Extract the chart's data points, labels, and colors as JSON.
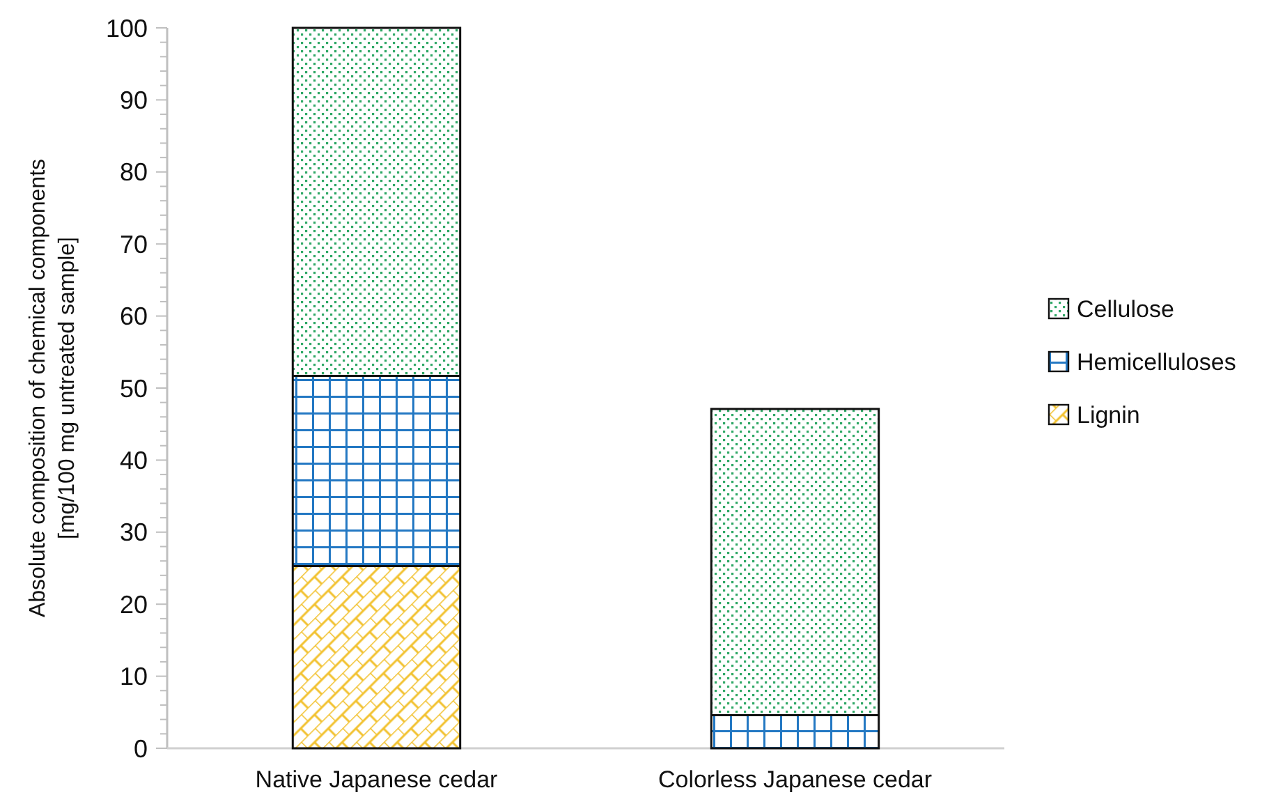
{
  "chart_data": {
    "type": "bar",
    "stacked": true,
    "ylabel": "Absolute composition of chemical components\n[mg/100 mg untreated sample]",
    "categories": [
      "Native Japanese cedar",
      "Colorless Japanese cedar"
    ],
    "series": [
      {
        "name": "Lignin",
        "color": "#f2c12e",
        "values": [
          25.3,
          0
        ]
      },
      {
        "name": "Hemicelluloses",
        "color": "#2378c3",
        "values": [
          26.4,
          4.6
        ]
      },
      {
        "name": "Cellulose",
        "color": "#2fa866",
        "values": [
          48.3,
          42.5
        ]
      }
    ],
    "ylim": [
      0,
      100
    ],
    "yticks": [
      0,
      {
        "value": 2,
        "label": null
      },
      {
        "value": 4,
        "label": null
      },
      {
        "value": 6,
        "label": null
      },
      {
        "value": 8,
        "label": null
      },
      10,
      {
        "value": 12,
        "label": null
      },
      {
        "value": 14,
        "label": null
      },
      {
        "value": 16,
        "label": null
      },
      {
        "value": 18,
        "label": null
      },
      20,
      {
        "value": 22,
        "label": null
      },
      {
        "value": 24,
        "label": null
      },
      {
        "value": 26,
        "label": null
      },
      {
        "value": 28,
        "label": null
      },
      30,
      {
        "value": 32,
        "label": null
      },
      {
        "value": 34,
        "label": null
      },
      {
        "value": 36,
        "label": null
      },
      {
        "value": 38,
        "label": null
      },
      40,
      {
        "value": 42,
        "label": null
      },
      {
        "value": 44,
        "label": null
      },
      {
        "value": 46,
        "label": null
      },
      {
        "value": 48,
        "label": null
      },
      50,
      {
        "value": 52,
        "label": null
      },
      {
        "value": 54,
        "label": null
      },
      {
        "value": 56,
        "label": null
      },
      {
        "value": 58,
        "label": null
      },
      60,
      {
        "value": 62,
        "label": null
      },
      {
        "value": 64,
        "label": null
      },
      {
        "value": 66,
        "label": null
      },
      {
        "value": 68,
        "label": null
      },
      70,
      {
        "value": 72,
        "label": null
      },
      {
        "value": 74,
        "label": null
      },
      {
        "value": 76,
        "label": null
      },
      {
        "value": 78,
        "label": null
      },
      80,
      {
        "value": 82,
        "label": null
      },
      {
        "value": 84,
        "label": null
      },
      {
        "value": 86,
        "label": null
      },
      {
        "value": 88,
        "label": null
      },
      90,
      {
        "value": 92,
        "label": null
      },
      {
        "value": 94,
        "label": null
      },
      {
        "value": 96,
        "label": null
      },
      {
        "value": 98,
        "label": null
      },
      100
    ],
    "grid": false,
    "legend": "right"
  }
}
